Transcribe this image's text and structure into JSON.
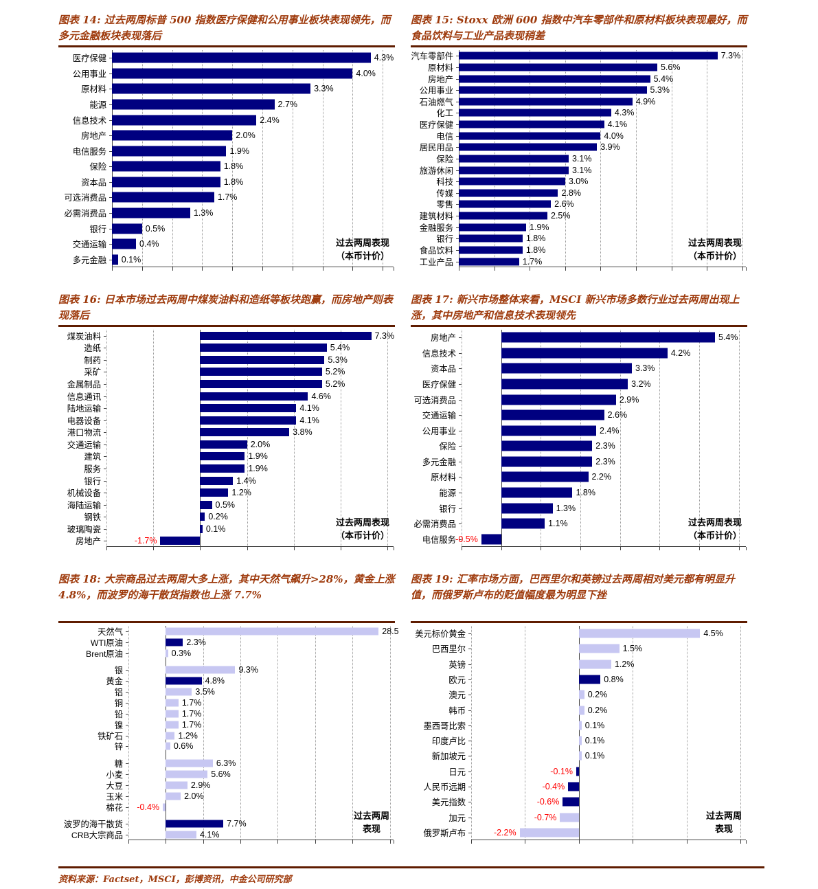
{
  "footer": {
    "source_label": "资料来源：Factset，MSCI，彭博资讯，中金公司研究部"
  },
  "colors": {
    "bar_dark": "#000080",
    "bar_light": "#c7c7f2",
    "title_text": "#9e3a0c",
    "rule": "#5f1c00",
    "negative_label": "#ff0000"
  },
  "chart_data": [
    {
      "id": "figure-14",
      "type": "bar",
      "orientation": "horizontal",
      "title": "图表 14: 过去两周标普 500 指数医疗保健和公用事业板块表现领先，而多元金融板块表现落后",
      "annotation": [
        "过去两周表现",
        "（本币计价）"
      ],
      "annotation_align": "right",
      "unit": "%",
      "xmin": 0,
      "xmax": 4.68,
      "gridlines": [
        0.5,
        1,
        1.5,
        2,
        2.5,
        3,
        3.5,
        4,
        4.5
      ],
      "groups": [
        [
          {
            "label": "医疗保健",
            "value": 4.3,
            "text": "4.3%",
            "tone": "dark"
          },
          {
            "label": "公用事业",
            "value": 4.0,
            "text": "4.0%",
            "tone": "dark"
          },
          {
            "label": "原材料",
            "value": 3.3,
            "text": "3.3%",
            "tone": "dark"
          },
          {
            "label": "能源",
            "value": 2.7,
            "text": "2.7%",
            "tone": "dark"
          },
          {
            "label": "信息技术",
            "value": 2.4,
            "text": "2.4%",
            "tone": "dark"
          },
          {
            "label": "房地产",
            "value": 2.0,
            "text": "2.0%",
            "tone": "dark"
          },
          {
            "label": "电信服务",
            "value": 1.9,
            "text": "1.9%",
            "tone": "dark"
          },
          {
            "label": "保险",
            "value": 1.8,
            "text": "1.8%",
            "tone": "dark"
          },
          {
            "label": "资本品",
            "value": 1.8,
            "text": "1.8%",
            "tone": "dark"
          },
          {
            "label": "可选消费品",
            "value": 1.7,
            "text": "1.7%",
            "tone": "dark"
          },
          {
            "label": "必需消费品",
            "value": 1.3,
            "text": "1.3%",
            "tone": "dark"
          },
          {
            "label": "银行",
            "value": 0.5,
            "text": "0.5%",
            "tone": "dark"
          },
          {
            "label": "交通运输",
            "value": 0.4,
            "text": "0.4%",
            "tone": "dark"
          },
          {
            "label": "多元金融",
            "value": 0.1,
            "text": "0.1%",
            "tone": "dark"
          }
        ]
      ]
    },
    {
      "id": "figure-15",
      "type": "bar",
      "orientation": "horizontal",
      "title": "图表 15: Stoxx 欧洲 600 指数中汽车零部件和原材料板块表现最好，而食品饮料与工业产品表现稍差",
      "annotation": [
        "过去两周表现",
        "（本币计价）"
      ],
      "annotation_align": "right",
      "unit": "%",
      "xmin": 0,
      "xmax": 8.1,
      "gridlines": [
        1,
        2,
        3,
        4,
        5,
        6,
        7,
        8
      ],
      "groups": [
        [
          {
            "label": "汽车零部件",
            "value": 7.3,
            "text": "7.3%",
            "tone": "dark"
          },
          {
            "label": "原材料",
            "value": 5.6,
            "text": "5.6%",
            "tone": "dark"
          },
          {
            "label": "房地产",
            "value": 5.4,
            "text": "5.4%",
            "tone": "dark"
          },
          {
            "label": "公用事业",
            "value": 5.3,
            "text": "5.3%",
            "tone": "dark"
          },
          {
            "label": "石油燃气",
            "value": 4.9,
            "text": "4.9%",
            "tone": "dark"
          },
          {
            "label": "化工",
            "value": 4.3,
            "text": "4.3%",
            "tone": "dark"
          },
          {
            "label": "医疗保健",
            "value": 4.1,
            "text": "4.1%",
            "tone": "dark"
          },
          {
            "label": "电信",
            "value": 4.0,
            "text": "4.0%",
            "tone": "dark"
          },
          {
            "label": "居民用品",
            "value": 3.9,
            "text": "3.9%",
            "tone": "dark"
          },
          {
            "label": "保险",
            "value": 3.1,
            "text": "3.1%",
            "tone": "dark"
          },
          {
            "label": "旅游休闲",
            "value": 3.1,
            "text": "3.1%",
            "tone": "dark"
          },
          {
            "label": "科技",
            "value": 3.0,
            "text": "3.0%",
            "tone": "dark"
          },
          {
            "label": "传媒",
            "value": 2.8,
            "text": "2.8%",
            "tone": "dark"
          },
          {
            "label": "零售",
            "value": 2.6,
            "text": "2.6%",
            "tone": "dark"
          },
          {
            "label": "建筑材料",
            "value": 2.5,
            "text": "2.5%",
            "tone": "dark"
          },
          {
            "label": "金融服务",
            "value": 1.9,
            "text": "1.9%",
            "tone": "dark"
          },
          {
            "label": "银行",
            "value": 1.8,
            "text": "1.8%",
            "tone": "dark"
          },
          {
            "label": "食品饮料",
            "value": 1.8,
            "text": "1.8%",
            "tone": "dark"
          },
          {
            "label": "工业产品",
            "value": 1.7,
            "text": "1.7%",
            "tone": "dark"
          }
        ]
      ]
    },
    {
      "id": "figure-16",
      "type": "bar",
      "orientation": "horizontal",
      "title": "图表 16: 日本市场过去两周中煤炭油料和造纸等板块跑赢，而房地产则表现落后",
      "annotation": [
        "过去两周表现",
        "（本币计价）"
      ],
      "annotation_align": "right",
      "unit": "%",
      "xmin": -4,
      "xmax": 8.25,
      "gridlines": [
        -4,
        -2,
        2,
        4,
        6,
        8
      ],
      "groups": [
        [
          {
            "label": "煤炭油料",
            "value": 7.3,
            "text": "7.3%",
            "tone": "dark"
          },
          {
            "label": "造纸",
            "value": 5.4,
            "text": "5.4%",
            "tone": "dark"
          },
          {
            "label": "制药",
            "value": 5.3,
            "text": "5.3%",
            "tone": "dark"
          },
          {
            "label": "采矿",
            "value": 5.2,
            "text": "5.2%",
            "tone": "dark"
          },
          {
            "label": "金属制品",
            "value": 5.2,
            "text": "5.2%",
            "tone": "dark"
          },
          {
            "label": "信息通讯",
            "value": 4.6,
            "text": "4.6%",
            "tone": "dark"
          },
          {
            "label": "陆地运输",
            "value": 4.1,
            "text": "4.1%",
            "tone": "dark"
          },
          {
            "label": "电器设备",
            "value": 4.1,
            "text": "4.1%",
            "tone": "dark"
          },
          {
            "label": "港口物流",
            "value": 3.8,
            "text": "3.8%",
            "tone": "dark"
          },
          {
            "label": "交通运输",
            "value": 2.0,
            "text": "2.0%",
            "tone": "dark"
          },
          {
            "label": "建筑",
            "value": 1.9,
            "text": "1.9%",
            "tone": "dark"
          },
          {
            "label": "服务",
            "value": 1.9,
            "text": "1.9%",
            "tone": "dark"
          },
          {
            "label": "银行",
            "value": 1.4,
            "text": "1.4%",
            "tone": "dark"
          },
          {
            "label": "机械设备",
            "value": 1.2,
            "text": "1.2%",
            "tone": "dark"
          },
          {
            "label": "海陆运输",
            "value": 0.5,
            "text": "0.5%",
            "tone": "dark"
          },
          {
            "label": "钢铁",
            "value": 0.2,
            "text": "0.2%",
            "tone": "dark"
          },
          {
            "label": "玻璃陶瓷",
            "value": 0.1,
            "text": "0.1%",
            "tone": "dark"
          },
          {
            "label": "房地产",
            "value": -1.7,
            "text": "-1.7%",
            "tone": "dark"
          }
        ]
      ]
    },
    {
      "id": "figure-17",
      "type": "bar",
      "orientation": "horizontal",
      "title": "图表 17: 新兴市场整体来看，MSCI 新兴市场多数行业过去两周出现上涨，其中房地产和信息技术表现领先",
      "annotation": [
        "过去两周表现",
        "（本币计价）"
      ],
      "annotation_align": "right",
      "unit": "%",
      "xmin": -1,
      "xmax": 6.18,
      "gridlines": [
        -1,
        1,
        2,
        3,
        4,
        5,
        6
      ],
      "groups": [
        [
          {
            "label": "房地产",
            "value": 5.4,
            "text": "5.4%",
            "tone": "dark"
          },
          {
            "label": "信息技术",
            "value": 4.2,
            "text": "4.2%",
            "tone": "dark"
          },
          {
            "label": "资本品",
            "value": 3.3,
            "text": "3.3%",
            "tone": "dark"
          },
          {
            "label": "医疗保健",
            "value": 3.2,
            "text": "3.2%",
            "tone": "dark"
          },
          {
            "label": "可选消费品",
            "value": 2.9,
            "text": "2.9%",
            "tone": "dark"
          },
          {
            "label": "交通运输",
            "value": 2.6,
            "text": "2.6%",
            "tone": "dark"
          },
          {
            "label": "公用事业",
            "value": 2.4,
            "text": "2.4%",
            "tone": "dark"
          },
          {
            "label": "保险",
            "value": 2.3,
            "text": "2.3%",
            "tone": "dark"
          },
          {
            "label": "多元金融",
            "value": 2.3,
            "text": "2.3%",
            "tone": "dark"
          },
          {
            "label": "原材料",
            "value": 2.2,
            "text": "2.2%",
            "tone": "dark"
          },
          {
            "label": "能源",
            "value": 1.8,
            "text": "1.8%",
            "tone": "dark"
          },
          {
            "label": "银行",
            "value": 1.3,
            "text": "1.3%",
            "tone": "dark"
          },
          {
            "label": "必需消费品",
            "value": 1.1,
            "text": "1.1%",
            "tone": "dark"
          },
          {
            "label": "电信服务",
            "value": -0.5,
            "text": "-0.5%",
            "tone": "dark"
          }
        ]
      ]
    },
    {
      "id": "figure-18",
      "type": "bar",
      "orientation": "horizontal",
      "title": "图表 18: 大宗商品过去两周大多上涨，其中天然气飙升>28%，黄金上涨 4.8%，而波罗的海干散货指数也上涨 7.7%",
      "annotation": [
        "过去两周",
        "表现"
      ],
      "annotation_align": "center",
      "unit": "%",
      "xmin": -5,
      "xmax": 30.5,
      "gridlines": [
        -5,
        5,
        10,
        15,
        20,
        25,
        30
      ],
      "groups": [
        [
          {
            "label": "天然气",
            "value": 28.5,
            "text": "28.5",
            "tone": "light"
          },
          {
            "label": "WTI原油",
            "value": 2.3,
            "text": "2.3%",
            "tone": "dark"
          },
          {
            "label": "Brent原油",
            "value": 0.3,
            "text": "0.3%",
            "tone": "light"
          }
        ],
        [
          {
            "label": "银",
            "value": 9.3,
            "text": "9.3%",
            "tone": "light"
          },
          {
            "label": "黄金",
            "value": 4.8,
            "text": "4.8%",
            "tone": "dark"
          },
          {
            "label": "铝",
            "value": 3.5,
            "text": "3.5%",
            "tone": "light"
          },
          {
            "label": "铜",
            "value": 1.7,
            "text": "1.7%",
            "tone": "light"
          },
          {
            "label": "铅",
            "value": 1.7,
            "text": "1.7%",
            "tone": "light"
          },
          {
            "label": "镍",
            "value": 1.7,
            "text": "1.7%",
            "tone": "light"
          },
          {
            "label": "铁矿石",
            "value": 1.2,
            "text": "1.2%",
            "tone": "light"
          },
          {
            "label": "锌",
            "value": 0.6,
            "text": "0.6%",
            "tone": "light"
          }
        ],
        [
          {
            "label": "糖",
            "value": 6.3,
            "text": "6.3%",
            "tone": "light"
          },
          {
            "label": "小麦",
            "value": 5.6,
            "text": "5.6%",
            "tone": "light"
          },
          {
            "label": "大豆",
            "value": 2.9,
            "text": "2.9%",
            "tone": "light"
          },
          {
            "label": "玉米",
            "value": 2.0,
            "text": "2.0%",
            "tone": "light"
          },
          {
            "label": "棉花",
            "value": -0.4,
            "text": "-0.4%",
            "tone": "light"
          }
        ],
        [
          {
            "label": "波罗的海干散货",
            "value": 7.7,
            "text": "7.7%",
            "tone": "dark"
          },
          {
            "label": "CRB大宗商品",
            "value": 4.1,
            "text": "4.1%",
            "tone": "light"
          }
        ]
      ]
    },
    {
      "id": "figure-19",
      "type": "bar",
      "orientation": "horizontal",
      "title": "图表 19: 汇率市场方面，巴西里尔和英镑过去两周相对美元都有明显升值，而俄罗斯卢布的贬值幅度最为明显下挫",
      "annotation": [
        "过去两周",
        "表现"
      ],
      "annotation_align": "center",
      "unit": "%",
      "xmin": -4,
      "xmax": 6.2,
      "gridlines": [
        -4,
        -2,
        2,
        4,
        6
      ],
      "groups": [
        [
          {
            "label": "美元标价黄金",
            "value": 4.5,
            "text": "4.5%",
            "tone": "light"
          },
          {
            "label": "巴西里尔",
            "value": 1.5,
            "text": "1.5%",
            "tone": "light"
          },
          {
            "label": "英镑",
            "value": 1.2,
            "text": "1.2%",
            "tone": "light"
          },
          {
            "label": "欧元",
            "value": 0.8,
            "text": "0.8%",
            "tone": "dark"
          },
          {
            "label": "澳元",
            "value": 0.2,
            "text": "0.2%",
            "tone": "light"
          },
          {
            "label": "韩币",
            "value": 0.2,
            "text": "0.2%",
            "tone": "light"
          },
          {
            "label": "墨西哥比索",
            "value": 0.1,
            "text": "0.1%",
            "tone": "light"
          },
          {
            "label": "印度卢比",
            "value": 0.1,
            "text": "0.1%",
            "tone": "light"
          },
          {
            "label": "新加坡元",
            "value": 0.1,
            "text": "0.1%",
            "tone": "light"
          },
          {
            "label": "日元",
            "value": -0.1,
            "text": "-0.1%",
            "tone": "dark"
          },
          {
            "label": "人民币远期",
            "value": -0.4,
            "text": "-0.4%",
            "tone": "dark"
          },
          {
            "label": "美元指数",
            "value": -0.6,
            "text": "-0.6%",
            "tone": "dark"
          },
          {
            "label": "加元",
            "value": -0.7,
            "text": "-0.7%",
            "tone": "light"
          },
          {
            "label": "俄罗斯卢布",
            "value": -2.2,
            "text": "-2.2%",
            "tone": "light"
          }
        ]
      ]
    }
  ]
}
